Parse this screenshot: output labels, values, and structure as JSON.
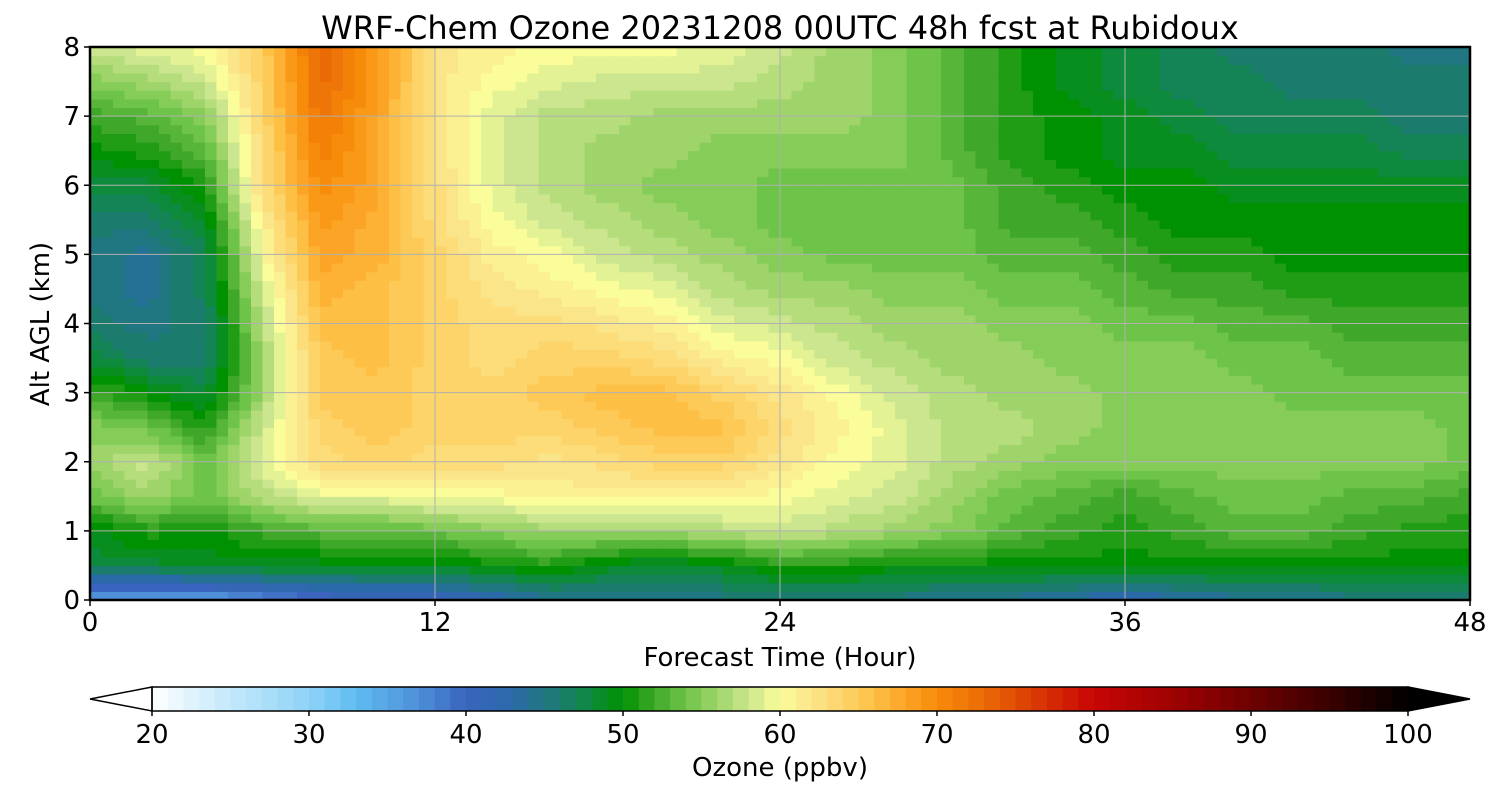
{
  "chart_data": {
    "type": "heatmap",
    "title": "WRF-Chem Ozone  20231208 00UTC 48h fcst at Rubidoux",
    "xlabel": "Forecast Time (Hour)",
    "ylabel": "Alt AGL (km)",
    "xlim": [
      0,
      48
    ],
    "ylim": [
      0,
      8
    ],
    "xticks": [
      0,
      12,
      24,
      36,
      48
    ],
    "yticks": [
      0,
      1,
      2,
      3,
      4,
      5,
      6,
      7,
      8
    ],
    "grid": true,
    "x": [
      0,
      2,
      4,
      6,
      8,
      10,
      12,
      14,
      16,
      18,
      20,
      22,
      24,
      26,
      28,
      30,
      32,
      34,
      36,
      38,
      40,
      42,
      44,
      46,
      48
    ],
    "y": [
      0,
      0.5,
      1,
      1.5,
      2,
      2.5,
      3,
      3.5,
      4,
      4.5,
      5,
      5.5,
      6,
      6.5,
      7,
      7.5,
      8
    ],
    "z": [
      [
        36,
        35,
        35,
        37,
        39,
        40,
        40,
        42,
        44,
        44,
        45,
        45,
        45,
        45,
        45,
        44,
        44,
        43,
        42,
        43,
        44,
        44,
        45,
        45,
        45
      ],
      [
        48,
        48,
        49,
        49,
        49,
        49,
        49,
        50,
        51,
        49,
        48,
        49,
        51,
        51,
        50,
        50,
        50,
        50,
        50,
        50,
        50,
        50,
        50,
        50,
        50
      ],
      [
        49,
        51,
        50,
        52,
        53,
        53,
        54,
        55,
        56,
        56,
        56,
        57,
        58,
        57,
        56,
        55,
        53,
        52,
        51,
        52,
        53,
        53,
        52,
        51,
        51
      ],
      [
        54,
        56,
        54,
        57,
        59,
        59,
        60,
        60,
        61,
        61,
        61,
        61,
        60,
        59,
        58,
        56,
        54,
        53,
        52,
        53,
        54,
        54,
        53,
        53,
        52
      ],
      [
        56,
        58,
        54,
        59,
        63,
        64,
        63,
        63,
        62,
        63,
        64,
        64,
        62,
        60,
        59,
        57,
        56,
        55,
        55,
        55,
        55,
        55,
        55,
        55,
        54
      ],
      [
        55,
        54,
        51,
        58,
        64,
        65,
        64,
        64,
        64,
        65,
        66,
        66,
        63,
        61,
        59,
        57,
        57,
        56,
        55,
        55,
        55,
        55,
        55,
        55,
        54
      ],
      [
        52,
        50,
        48,
        56,
        65,
        65,
        64,
        64,
        65,
        66,
        66,
        64,
        62,
        60,
        58,
        57,
        56,
        56,
        55,
        55,
        55,
        54,
        54,
        54,
        54
      ],
      [
        48,
        46,
        46,
        56,
        65,
        66,
        64,
        63,
        64,
        64,
        63,
        61,
        60,
        58,
        57,
        56,
        56,
        55,
        55,
        55,
        54,
        54,
        53,
        53,
        53
      ],
      [
        46,
        45,
        46,
        57,
        66,
        66,
        64,
        63,
        63,
        62,
        61,
        59,
        58,
        57,
        56,
        56,
        55,
        55,
        54,
        54,
        53,
        53,
        52,
        52,
        52
      ],
      [
        45,
        44,
        47,
        58,
        67,
        66,
        64,
        62,
        61,
        60,
        59,
        57,
        56,
        56,
        55,
        55,
        54,
        54,
        53,
        52,
        52,
        51,
        51,
        51,
        51
      ],
      [
        45,
        44,
        47,
        60,
        68,
        67,
        64,
        61,
        60,
        58,
        57,
        56,
        55,
        54,
        54,
        54,
        53,
        53,
        52,
        51,
        51,
        50,
        50,
        50,
        50
      ],
      [
        46,
        46,
        49,
        61,
        69,
        67,
        63,
        60,
        58,
        57,
        56,
        55,
        54,
        54,
        54,
        54,
        52,
        52,
        51,
        50,
        50,
        50,
        50,
        50,
        50
      ],
      [
        48,
        48,
        51,
        63,
        70,
        68,
        63,
        59,
        57,
        56,
        55,
        55,
        54,
        54,
        54,
        54,
        52,
        51,
        50,
        50,
        49,
        49,
        49,
        49,
        49
      ],
      [
        50,
        51,
        53,
        63,
        71,
        68,
        62,
        59,
        57,
        56,
        56,
        55,
        55,
        55,
        55,
        53,
        51,
        50,
        49,
        49,
        48,
        48,
        48,
        47,
        47
      ],
      [
        52,
        53,
        55,
        64,
        72,
        68,
        62,
        59,
        57,
        57,
        56,
        56,
        56,
        56,
        55,
        53,
        51,
        50,
        49,
        48,
        47,
        47,
        47,
        46,
        46
      ],
      [
        55,
        56,
        58,
        64,
        73,
        69,
        62,
        60,
        59,
        58,
        58,
        58,
        57,
        56,
        55,
        53,
        51,
        49,
        48,
        47,
        47,
        46,
        46,
        46,
        46
      ],
      [
        58,
        59,
        60,
        65,
        73,
        69,
        62,
        61,
        60,
        60,
        60,
        59,
        58,
        56,
        55,
        53,
        51,
        49,
        48,
        47,
        46,
        46,
        46,
        45,
        45
      ]
    ],
    "colorbar": {
      "label": "Ozone  (ppbv)",
      "min": 20,
      "max": 100,
      "ticks": [
        20,
        30,
        40,
        50,
        60,
        70,
        80,
        90,
        100
      ],
      "extend": "both",
      "colors": [
        {
          "v": 20,
          "c": "#ffffff"
        },
        {
          "v": 22,
          "c": "#e6f5fc"
        },
        {
          "v": 25,
          "c": "#c3e8fb"
        },
        {
          "v": 30,
          "c": "#8fd3f7"
        },
        {
          "v": 33,
          "c": "#5fbcf0"
        },
        {
          "v": 37,
          "c": "#4e8fd8"
        },
        {
          "v": 40,
          "c": "#3a64bd"
        },
        {
          "v": 43,
          "c": "#2a6aa8"
        },
        {
          "v": 46,
          "c": "#1b7c6e"
        },
        {
          "v": 48,
          "c": "#0d8a3c"
        },
        {
          "v": 50,
          "c": "#009100"
        },
        {
          "v": 52,
          "c": "#3fa82a"
        },
        {
          "v": 54,
          "c": "#6ec448"
        },
        {
          "v": 56,
          "c": "#9ed46a"
        },
        {
          "v": 58,
          "c": "#cbe68e"
        },
        {
          "v": 60,
          "c": "#fbfd9a"
        },
        {
          "v": 62,
          "c": "#fbe58a"
        },
        {
          "v": 64,
          "c": "#fdd46a"
        },
        {
          "v": 66,
          "c": "#fdc045"
        },
        {
          "v": 68,
          "c": "#fca426"
        },
        {
          "v": 70,
          "c": "#f78c0a"
        },
        {
          "v": 73,
          "c": "#ea6a05"
        },
        {
          "v": 76,
          "c": "#db3d05"
        },
        {
          "v": 80,
          "c": "#c80505"
        },
        {
          "v": 85,
          "c": "#9e0202"
        },
        {
          "v": 90,
          "c": "#6e0101"
        },
        {
          "v": 95,
          "c": "#3a0000"
        },
        {
          "v": 100,
          "c": "#000000"
        }
      ]
    }
  }
}
